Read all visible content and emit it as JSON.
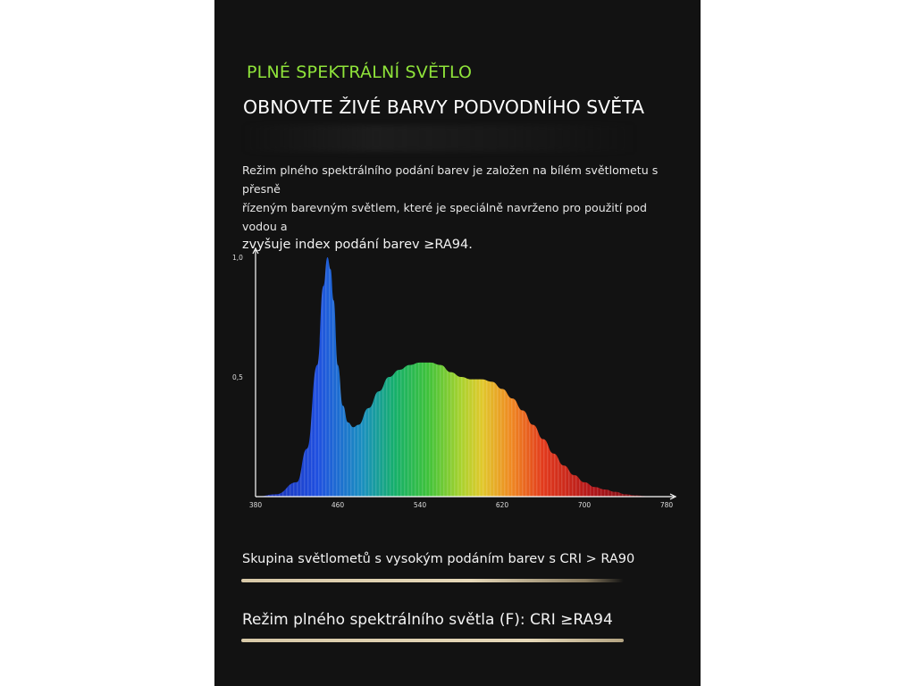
{
  "heading": {
    "kicker": "PLNÉ SPEKTRÁLNÍ SVĚTLO",
    "title": "OBNOVTE ŽIVÉ BARVY PODVODNÍHO SVĚTA"
  },
  "description": {
    "line1": "Režim plného spektrálního podání barev je založen na bílém světlometu s přesně",
    "line2": "řízeným barevným světlem, které je speciálně navrženo pro použití pod vodou a",
    "line3": "zvyšuje index podání barev ≥RA94."
  },
  "chart_data": {
    "type": "area",
    "title": "",
    "xlabel": "",
    "ylabel": "",
    "xlim": [
      380,
      780
    ],
    "ylim": [
      0,
      1.0
    ],
    "x_ticks": [
      "380",
      "460",
      "540",
      "620",
      "700",
      "780"
    ],
    "y_ticks": [
      "1,0",
      "0,5"
    ],
    "grid": false,
    "x": [
      380,
      400,
      420,
      430,
      440,
      446,
      450,
      453,
      456,
      460,
      465,
      470,
      475,
      480,
      490,
      500,
      510,
      520,
      530,
      540,
      550,
      560,
      570,
      580,
      590,
      600,
      610,
      620,
      630,
      640,
      650,
      660,
      670,
      680,
      690,
      700,
      710,
      720,
      730,
      740,
      750,
      760,
      770,
      780
    ],
    "y": [
      0.0,
      0.01,
      0.06,
      0.2,
      0.55,
      0.88,
      1.0,
      0.95,
      0.82,
      0.55,
      0.38,
      0.31,
      0.29,
      0.3,
      0.37,
      0.44,
      0.5,
      0.53,
      0.55,
      0.56,
      0.56,
      0.55,
      0.52,
      0.5,
      0.49,
      0.49,
      0.48,
      0.45,
      0.41,
      0.36,
      0.3,
      0.24,
      0.18,
      0.13,
      0.09,
      0.06,
      0.04,
      0.03,
      0.02,
      0.01,
      0.005,
      0.002,
      0.0,
      0.0
    ]
  },
  "cri": {
    "line1": "Skupina světlometů s vysokým podáním barev s CRI > RA90",
    "line2": "Režim plného spektrálního světla (F): CRI ≥RA94",
    "bar1_level": 1.0,
    "bar2_level": 1.0
  }
}
